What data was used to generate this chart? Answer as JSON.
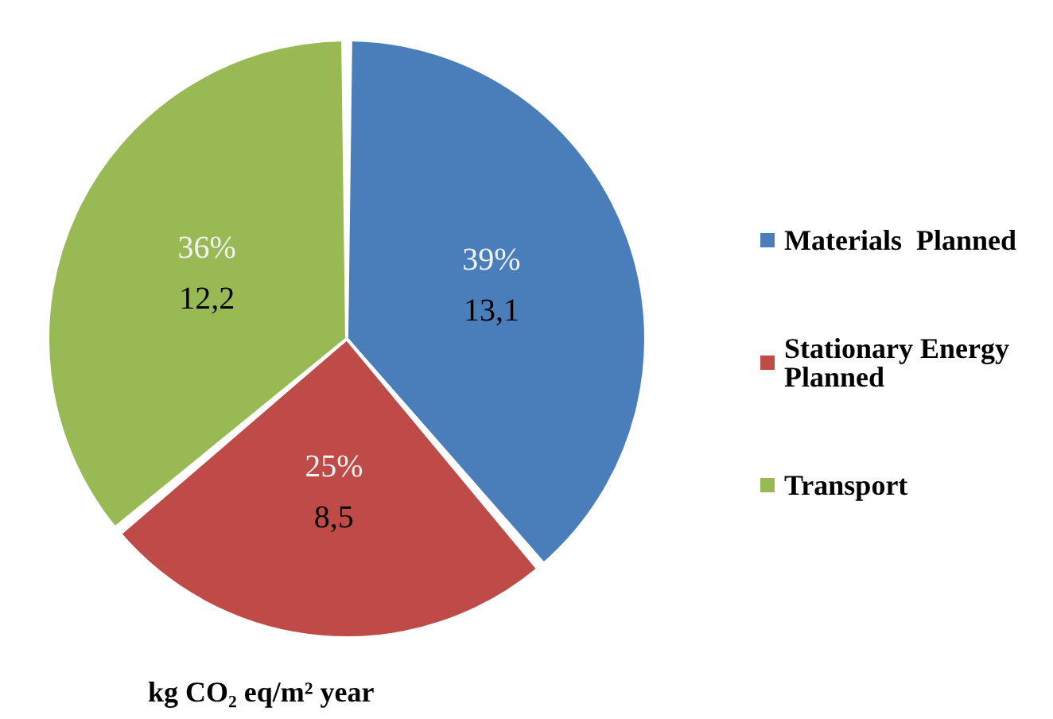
{
  "chart_data": {
    "type": "pie",
    "categories": [
      "Materials  Planned",
      "Stationary Energy Planned",
      "Transport"
    ],
    "values": [
      13.1,
      8.5,
      12.2
    ],
    "colors": [
      "#4a7ebb",
      "#be4b48",
      "#98b954"
    ],
    "value_labels": [
      "39%\n13,1",
      "25%\n8,5",
      "36%\n12,2"
    ],
    "legend": "right",
    "annotations": [
      "kg CO₂ eq/m² year"
    ]
  }
}
